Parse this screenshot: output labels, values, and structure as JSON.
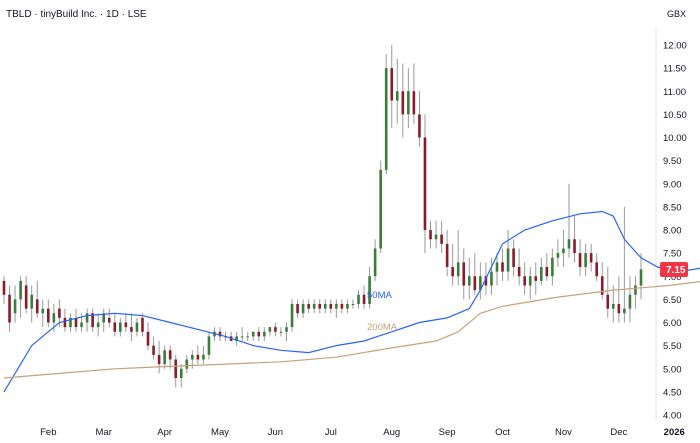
{
  "chart_data": {
    "type": "candlestick",
    "title": "TBLD · tinyBuild Inc. · 1D · LSE",
    "currency": "GBX",
    "ylim": [
      4.0,
      12.2
    ],
    "yticks": [
      "4.00",
      "4.50",
      "5.00",
      "5.50",
      "6.00",
      "6.50",
      "7.00",
      "7.50",
      "8.00",
      "8.50",
      "9.00",
      "9.50",
      "10.00",
      "10.50",
      "11.00",
      "11.50",
      "12.00"
    ],
    "x_tick_labels": [
      {
        "label": "Feb",
        "index": 8,
        "bold": false
      },
      {
        "label": "Mar",
        "index": 18,
        "bold": false
      },
      {
        "label": "Apr",
        "index": 29,
        "bold": false
      },
      {
        "label": "May",
        "index": 39,
        "bold": false
      },
      {
        "label": "Jun",
        "index": 49,
        "bold": false
      },
      {
        "label": "Jul",
        "index": 59,
        "bold": false
      },
      {
        "label": "Aug",
        "index": 70,
        "bold": false
      },
      {
        "label": "Sep",
        "index": 80,
        "bold": false
      },
      {
        "label": "Oct",
        "index": 90,
        "bold": false
      },
      {
        "label": "Nov",
        "index": 101,
        "bold": false
      },
      {
        "label": "Dec",
        "index": 111,
        "bold": false
      },
      {
        "label": "2026",
        "index": 121,
        "bold": true
      },
      {
        "label": "Feb",
        "index": 131,
        "bold": false
      },
      {
        "label": "Mar",
        "index": 141,
        "bold": false
      },
      {
        "label": "Apr",
        "index": 151,
        "bold": false
      }
    ],
    "last_price": "7.15",
    "series": [
      {
        "name": "50MA",
        "color": "#2962ff",
        "points": [
          [
            0,
            4.5
          ],
          [
            5,
            5.5
          ],
          [
            10,
            6.0
          ],
          [
            15,
            6.15
          ],
          [
            20,
            6.2
          ],
          [
            25,
            6.15
          ],
          [
            30,
            6.0
          ],
          [
            35,
            5.85
          ],
          [
            40,
            5.7
          ],
          [
            45,
            5.5
          ],
          [
            50,
            5.4
          ],
          [
            55,
            5.35
          ],
          [
            60,
            5.5
          ],
          [
            65,
            5.6
          ],
          [
            70,
            5.8
          ],
          [
            75,
            6.0
          ],
          [
            80,
            6.1
          ],
          [
            84,
            6.3
          ],
          [
            86,
            6.7
          ],
          [
            88,
            7.2
          ],
          [
            90,
            7.7
          ],
          [
            94,
            8.0
          ],
          [
            99,
            8.2
          ],
          [
            104,
            8.35
          ],
          [
            108,
            8.4
          ],
          [
            110,
            8.3
          ],
          [
            112,
            7.8
          ],
          [
            115,
            7.4
          ],
          [
            118,
            7.2
          ],
          [
            122,
            7.1
          ],
          [
            127,
            7.2
          ],
          [
            131,
            7.3
          ],
          [
            136,
            7.3
          ],
          [
            140,
            7.15
          ],
          [
            146,
            7.1
          ],
          [
            151,
            7.15
          ]
        ]
      },
      {
        "name": "200MA",
        "color": "#c8a27a",
        "points": [
          [
            0,
            4.8
          ],
          [
            10,
            4.9
          ],
          [
            20,
            5.0
          ],
          [
            30,
            5.05
          ],
          [
            40,
            5.1
          ],
          [
            50,
            5.15
          ],
          [
            60,
            5.25
          ],
          [
            70,
            5.45
          ],
          [
            78,
            5.6
          ],
          [
            82,
            5.8
          ],
          [
            86,
            6.2
          ],
          [
            90,
            6.35
          ],
          [
            100,
            6.55
          ],
          [
            110,
            6.7
          ],
          [
            120,
            6.8
          ],
          [
            130,
            6.95
          ],
          [
            140,
            7.1
          ],
          [
            151,
            7.15
          ]
        ]
      }
    ],
    "candles": [
      [
        6.9,
        7.0,
        6.4,
        6.6
      ],
      [
        6.6,
        6.8,
        5.8,
        6.0
      ],
      [
        6.2,
        6.8,
        6.0,
        6.5
      ],
      [
        6.5,
        7.0,
        6.1,
        6.9
      ],
      [
        6.8,
        7.0,
        6.2,
        6.3
      ],
      [
        6.3,
        6.8,
        6.0,
        6.6
      ],
      [
        6.5,
        6.9,
        6.1,
        6.2
      ],
      [
        6.2,
        6.5,
        5.9,
        6.3
      ],
      [
        6.3,
        6.5,
        5.9,
        6.0
      ],
      [
        6.0,
        6.4,
        5.8,
        6.2
      ],
      [
        6.3,
        6.5,
        5.9,
        6.1
      ],
      [
        6.1,
        6.3,
        5.8,
        5.9
      ],
      [
        5.9,
        6.2,
        5.8,
        6.1
      ],
      [
        6.1,
        6.3,
        5.8,
        5.9
      ],
      [
        5.9,
        6.2,
        5.8,
        6.0
      ],
      [
        6.0,
        6.3,
        5.8,
        6.2
      ],
      [
        6.2,
        6.3,
        5.8,
        5.9
      ],
      [
        5.9,
        6.2,
        5.7,
        6.0
      ],
      [
        6.0,
        6.3,
        5.8,
        6.2
      ],
      [
        6.1,
        6.3,
        5.9,
        6.0
      ],
      [
        6.0,
        6.2,
        5.7,
        5.8
      ],
      [
        5.8,
        6.1,
        5.7,
        6.0
      ],
      [
        6.0,
        6.2,
        5.8,
        5.9
      ],
      [
        5.9,
        6.2,
        5.6,
        5.8
      ],
      [
        5.8,
        6.1,
        5.7,
        6.0
      ],
      [
        6.1,
        6.2,
        5.7,
        5.8
      ],
      [
        5.8,
        6.0,
        5.4,
        5.5
      ],
      [
        5.5,
        5.7,
        5.2,
        5.3
      ],
      [
        5.3,
        5.6,
        4.9,
        5.1
      ],
      [
        5.1,
        5.5,
        5.0,
        5.4
      ],
      [
        5.4,
        5.5,
        5.0,
        5.2
      ],
      [
        5.2,
        5.3,
        4.6,
        4.8
      ],
      [
        4.8,
        5.1,
        4.6,
        5.0
      ],
      [
        5.0,
        5.3,
        4.9,
        5.2
      ],
      [
        5.2,
        5.4,
        5.0,
        5.3
      ],
      [
        5.3,
        5.5,
        5.1,
        5.2
      ],
      [
        5.2,
        5.5,
        5.1,
        5.3
      ],
      [
        5.3,
        5.8,
        5.2,
        5.7
      ],
      [
        5.7,
        5.9,
        5.6,
        5.8
      ],
      [
        5.8,
        5.9,
        5.6,
        5.7
      ],
      [
        5.7,
        5.8,
        5.6,
        5.7
      ],
      [
        5.7,
        5.8,
        5.6,
        5.6
      ],
      [
        5.6,
        5.8,
        5.5,
        5.7
      ],
      [
        5.7,
        5.9,
        5.6,
        5.7
      ],
      [
        5.7,
        5.8,
        5.6,
        5.7
      ],
      [
        5.7,
        5.8,
        5.6,
        5.8
      ],
      [
        5.8,
        5.9,
        5.6,
        5.7
      ],
      [
        5.7,
        5.9,
        5.6,
        5.8
      ],
      [
        5.8,
        5.9,
        5.7,
        5.9
      ],
      [
        5.9,
        6.0,
        5.7,
        5.8
      ],
      [
        5.8,
        5.9,
        5.7,
        5.8
      ],
      [
        5.8,
        6.0,
        5.6,
        5.9
      ],
      [
        5.9,
        6.5,
        5.8,
        6.4
      ],
      [
        6.4,
        6.5,
        6.1,
        6.2
      ],
      [
        6.2,
        6.5,
        6.1,
        6.4
      ],
      [
        6.4,
        6.5,
        6.2,
        6.3
      ],
      [
        6.3,
        6.5,
        6.2,
        6.4
      ],
      [
        6.4,
        6.5,
        6.2,
        6.3
      ],
      [
        6.3,
        6.5,
        6.2,
        6.4
      ],
      [
        6.4,
        6.5,
        6.2,
        6.3
      ],
      [
        6.3,
        6.5,
        6.1,
        6.4
      ],
      [
        6.4,
        6.5,
        6.2,
        6.3
      ],
      [
        6.3,
        6.5,
        6.2,
        6.4
      ],
      [
        6.4,
        6.5,
        6.3,
        6.4
      ],
      [
        6.4,
        6.7,
        6.3,
        6.6
      ],
      [
        6.6,
        6.8,
        6.3,
        6.4
      ],
      [
        6.4,
        7.2,
        6.3,
        7.0
      ],
      [
        7.0,
        7.8,
        6.9,
        7.6
      ],
      [
        7.6,
        9.5,
        7.5,
        9.3
      ],
      [
        9.3,
        11.8,
        9.2,
        11.5
      ],
      [
        11.5,
        12.0,
        10.2,
        10.8
      ],
      [
        10.8,
        11.7,
        10.3,
        11.0
      ],
      [
        11.0,
        11.6,
        10.0,
        10.5
      ],
      [
        10.5,
        11.5,
        10.2,
        11.0
      ],
      [
        11.0,
        11.6,
        10.3,
        10.5
      ],
      [
        10.5,
        11.0,
        9.8,
        10.0
      ],
      [
        10.0,
        10.5,
        7.5,
        8.0
      ],
      [
        8.0,
        8.2,
        7.6,
        7.8
      ],
      [
        7.8,
        8.2,
        7.6,
        7.9
      ],
      [
        7.9,
        8.2,
        7.5,
        7.7
      ],
      [
        7.7,
        8.0,
        7.0,
        7.2
      ],
      [
        7.2,
        7.7,
        6.8,
        7.0
      ],
      [
        7.0,
        8.0,
        6.8,
        7.3
      ],
      [
        7.3,
        7.6,
        6.5,
        6.8
      ],
      [
        6.8,
        7.4,
        6.5,
        7.0
      ],
      [
        7.0,
        7.5,
        6.6,
        6.7
      ],
      [
        6.7,
        7.3,
        6.5,
        7.0
      ],
      [
        7.0,
        7.3,
        6.6,
        6.8
      ],
      [
        6.8,
        7.4,
        6.6,
        7.1
      ],
      [
        7.1,
        7.5,
        6.8,
        7.3
      ],
      [
        7.3,
        7.6,
        6.9,
        7.1
      ],
      [
        7.1,
        8.0,
        6.9,
        7.6
      ],
      [
        7.6,
        7.8,
        7.0,
        7.2
      ],
      [
        7.2,
        7.6,
        6.8,
        7.0
      ],
      [
        7.0,
        7.3,
        6.6,
        6.8
      ],
      [
        6.8,
        7.2,
        6.5,
        7.0
      ],
      [
        7.0,
        7.3,
        6.6,
        6.9
      ],
      [
        6.9,
        7.4,
        6.8,
        7.2
      ],
      [
        7.2,
        7.5,
        6.9,
        7.0
      ],
      [
        7.0,
        7.6,
        6.8,
        7.4
      ],
      [
        7.4,
        7.8,
        7.2,
        7.5
      ],
      [
        7.5,
        8.0,
        7.2,
        7.6
      ],
      [
        7.6,
        9.0,
        7.4,
        7.8
      ],
      [
        7.8,
        8.3,
        7.3,
        7.5
      ],
      [
        7.5,
        7.8,
        7.0,
        7.2
      ],
      [
        7.2,
        7.7,
        7.0,
        7.5
      ],
      [
        7.5,
        7.7,
        7.1,
        7.3
      ],
      [
        7.3,
        7.5,
        6.9,
        7.0
      ],
      [
        7.0,
        7.3,
        6.5,
        6.6
      ],
      [
        6.6,
        7.2,
        6.1,
        6.3
      ],
      [
        6.3,
        6.8,
        6.0,
        6.4
      ],
      [
        6.4,
        7.0,
        6.0,
        6.2
      ],
      [
        6.2,
        8.5,
        6.0,
        6.3
      ],
      [
        6.3,
        7.0,
        6.0,
        6.6
      ],
      [
        6.6,
        7.0,
        6.3,
        6.8
      ],
      [
        6.8,
        7.5,
        6.5,
        7.15
      ]
    ]
  }
}
